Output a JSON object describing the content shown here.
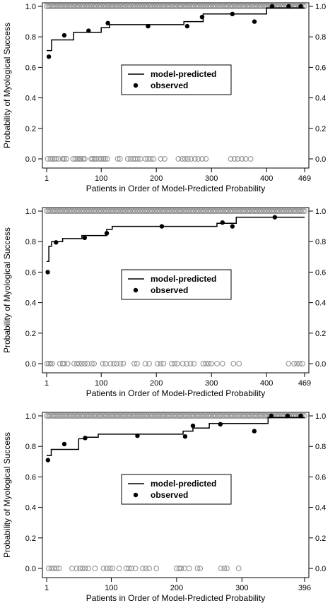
{
  "chart_data": [
    {
      "type": "scatter",
      "xlabel": "Patients in Order of Model-Predicted Probability",
      "ylabel": "Probability of Myological Success",
      "xlim": [
        1,
        469
      ],
      "ylim": [
        0,
        1
      ],
      "x_ticks": [
        1,
        100,
        200,
        300,
        400,
        469
      ],
      "x_tick_labels": [
        "1",
        "100",
        "200",
        "300",
        "400",
        "469"
      ],
      "y_ticks": [
        0.0,
        0.2,
        0.4,
        0.6,
        0.8,
        1.0
      ],
      "y_tick_labels": [
        "0.0",
        "0.2",
        "0.4",
        "0.6",
        "0.8",
        "1.0"
      ],
      "legend": {
        "position": "center",
        "items": [
          {
            "label": "model-predicted",
            "symbol": "line"
          },
          {
            "label": "observed",
            "symbol": "point"
          }
        ]
      },
      "series": [
        {
          "name": "model-predicted",
          "kind": "step",
          "x": [
            1,
            10,
            10,
            50,
            50,
            100,
            100,
            115,
            115,
            250,
            250,
            285,
            285,
            400,
            400,
            469
          ],
          "y": [
            0.71,
            0.71,
            0.78,
            0.78,
            0.83,
            0.83,
            0.86,
            0.86,
            0.88,
            0.88,
            0.9,
            0.9,
            0.95,
            0.95,
            0.99,
            0.99
          ]
        },
        {
          "name": "observed",
          "kind": "points",
          "x": [
            5,
            33,
            77,
            112,
            185,
            256,
            283,
            338,
            378,
            410,
            440,
            462
          ],
          "y": [
            0.67,
            0.81,
            0.84,
            0.89,
            0.87,
            0.87,
            0.93,
            0.95,
            0.9,
            1.0,
            1.0,
            1.0
          ]
        }
      ],
      "individual_outcomes": {
        "success_y": 1.0,
        "failure_y": 0.0,
        "failure_x": [
          3,
          8,
          12,
          15,
          18,
          23,
          30,
          33,
          37,
          49,
          53,
          57,
          60,
          63,
          67,
          70,
          82,
          85,
          88,
          91,
          96,
          100,
          104,
          107,
          111,
          130,
          134,
          148,
          153,
          158,
          162,
          166,
          171,
          180,
          185,
          190,
          195,
          208,
          215,
          240,
          247,
          252,
          257,
          263,
          270,
          276,
          283,
          290,
          335,
          342,
          348,
          355,
          362,
          371
        ]
      }
    },
    {
      "type": "scatter",
      "xlabel": "Patients in Order of Model-Predicted Probability",
      "ylabel": "Probability of Myological Success",
      "xlim": [
        1,
        469
      ],
      "ylim": [
        0,
        1
      ],
      "x_ticks": [
        1,
        100,
        200,
        300,
        400,
        469
      ],
      "x_tick_labels": [
        "1",
        "100",
        "200",
        "300",
        "400",
        "469"
      ],
      "y_ticks": [
        0.0,
        0.2,
        0.4,
        0.6,
        0.8,
        1.0
      ],
      "y_tick_labels": [
        "0.0",
        "0.2",
        "0.4",
        "0.6",
        "0.8",
        "1.0"
      ],
      "legend": {
        "position": "center",
        "items": [
          {
            "label": "model-predicted",
            "symbol": "line"
          },
          {
            "label": "observed",
            "symbol": "point"
          }
        ]
      },
      "series": [
        {
          "name": "model-predicted",
          "kind": "step",
          "x": [
            1,
            5,
            5,
            10,
            10,
            30,
            30,
            65,
            65,
            110,
            110,
            120,
            120,
            310,
            310,
            345,
            345,
            469
          ],
          "y": [
            0.67,
            0.67,
            0.77,
            0.77,
            0.8,
            0.8,
            0.82,
            0.82,
            0.84,
            0.84,
            0.88,
            0.88,
            0.9,
            0.9,
            0.92,
            0.92,
            0.96,
            0.96
          ]
        },
        {
          "name": "observed",
          "kind": "points",
          "x": [
            3,
            18,
            70,
            110,
            210,
            320,
            338,
            415
          ],
          "y": [
            0.6,
            0.795,
            0.825,
            0.855,
            0.9,
            0.925,
            0.9,
            0.96
          ]
        }
      ],
      "individual_outcomes": {
        "success_y": 1.0,
        "failure_y": 0.0,
        "failure_x": [
          2,
          5,
          8,
          11,
          25,
          30,
          33,
          39,
          51,
          56,
          60,
          65,
          70,
          75,
          83,
          87,
          103,
          108,
          117,
          123,
          128,
          135,
          140,
          160,
          165,
          180,
          187,
          202,
          208,
          213,
          228,
          233,
          238,
          248,
          255,
          262,
          268,
          285,
          290,
          295,
          300,
          310,
          320,
          340,
          350,
          440,
          450,
          455,
          460,
          465
        ]
      }
    },
    {
      "type": "scatter",
      "xlabel": "Patients in Order of Model-Predicted Probability",
      "ylabel": "Probability of Myological Success",
      "xlim": [
        1,
        396
      ],
      "ylim": [
        0,
        1
      ],
      "x_ticks": [
        1,
        100,
        200,
        300,
        396
      ],
      "x_tick_labels": [
        "1",
        "100",
        "200",
        "300",
        "396"
      ],
      "y_ticks": [
        0.0,
        0.2,
        0.4,
        0.6,
        0.8,
        1.0
      ],
      "y_tick_labels": [
        "0.0",
        "0.2",
        "0.4",
        "0.6",
        "0.8",
        "1.0"
      ],
      "legend": {
        "position": "center",
        "items": [
          {
            "label": "model-predicted",
            "symbol": "line"
          },
          {
            "label": "observed",
            "symbol": "point"
          }
        ]
      },
      "series": [
        {
          "name": "model-predicted",
          "kind": "step",
          "x": [
            1,
            8,
            8,
            50,
            50,
            60,
            60,
            80,
            80,
            210,
            210,
            225,
            225,
            250,
            250,
            340,
            340,
            396
          ],
          "y": [
            0.74,
            0.74,
            0.78,
            0.78,
            0.85,
            0.85,
            0.86,
            0.86,
            0.88,
            0.88,
            0.9,
            0.9,
            0.92,
            0.92,
            0.95,
            0.95,
            0.99,
            0.99
          ]
        },
        {
          "name": "observed",
          "kind": "points",
          "x": [
            3,
            28,
            60,
            140,
            213,
            225,
            267,
            319,
            345,
            370,
            390
          ],
          "y": [
            0.71,
            0.815,
            0.855,
            0.87,
            0.865,
            0.935,
            0.945,
            0.9,
            1.0,
            1.0,
            1.0
          ]
        }
      ],
      "individual_outcomes": {
        "success_y": 1.0,
        "failure_y": 0.0,
        "failure_x": [
          4,
          8,
          12,
          16,
          20,
          40,
          47,
          52,
          56,
          60,
          65,
          75,
          88,
          93,
          98,
          102,
          112,
          123,
          127,
          131,
          137,
          148,
          153,
          158,
          169,
          200,
          204,
          207,
          212,
          219,
          232,
          236,
          268,
          273,
          277,
          295
        ]
      }
    }
  ]
}
